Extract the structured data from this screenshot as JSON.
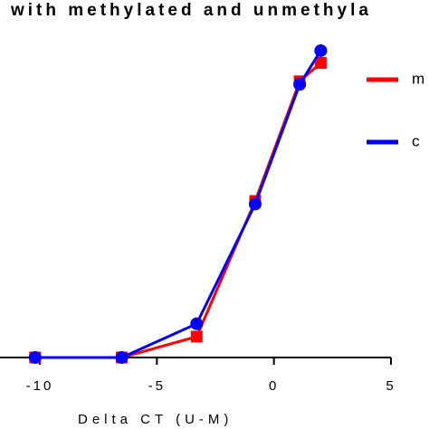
{
  "chart_data": {
    "type": "line",
    "title": "with methylated and unmethyla",
    "x_label": "Delta CT (U-M)",
    "xlim": [
      -11.7,
      5
    ],
    "xticks": [
      -10,
      -5,
      0,
      5
    ],
    "ylim": [
      0,
      116.5
    ],
    "series": [
      {
        "name": "m",
        "color": "#ff0000",
        "marker": "square",
        "x": [
          -10.2,
          -6.5,
          -3.3,
          -0.8,
          1.1,
          2.0
        ],
        "values": [
          0,
          0,
          6.8,
          51,
          90,
          96
        ]
      },
      {
        "name": "c",
        "color": "#0000ff",
        "marker": "circle",
        "x": [
          -10.2,
          -6.5,
          -3.3,
          -0.8,
          1.1,
          2.0
        ],
        "values": [
          0,
          0,
          11,
          50,
          89,
          100
        ]
      }
    ]
  }
}
